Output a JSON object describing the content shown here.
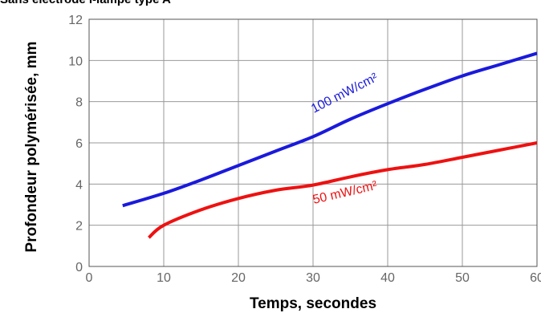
{
  "page": {
    "title": "Sans électrode i-lampe type A"
  },
  "chart_data": {
    "type": "line",
    "title": "Sans électrode i-lampe type A",
    "xlabel": "Temps, secondes",
    "ylabel": "Profondeur polymérisée, mm",
    "xlim": [
      0,
      60
    ],
    "ylim": [
      0,
      12
    ],
    "x_ticks": [
      "0",
      "10",
      "20",
      "30",
      "40",
      "50",
      "60"
    ],
    "y_ticks": [
      "0",
      "2",
      "4",
      "6",
      "8",
      "10",
      "12"
    ],
    "grid": true,
    "series": [
      {
        "name": "100 mW/cm²",
        "color": "#1a1adc",
        "x": [
          4.5,
          10,
          15,
          20,
          25,
          30,
          35,
          40,
          45,
          50,
          55,
          60
        ],
        "y": [
          2.95,
          3.55,
          4.2,
          4.9,
          5.6,
          6.3,
          7.15,
          7.9,
          8.6,
          9.25,
          9.8,
          10.35
        ]
      },
      {
        "name": "50 mW/cm²",
        "color": "#ee1111",
        "x": [
          8,
          10,
          15,
          20,
          25,
          30,
          35,
          40,
          45,
          50,
          55,
          60
        ],
        "y": [
          1.4,
          2.0,
          2.75,
          3.3,
          3.7,
          3.95,
          4.35,
          4.7,
          4.95,
          5.3,
          5.65,
          6.0
        ]
      }
    ]
  }
}
